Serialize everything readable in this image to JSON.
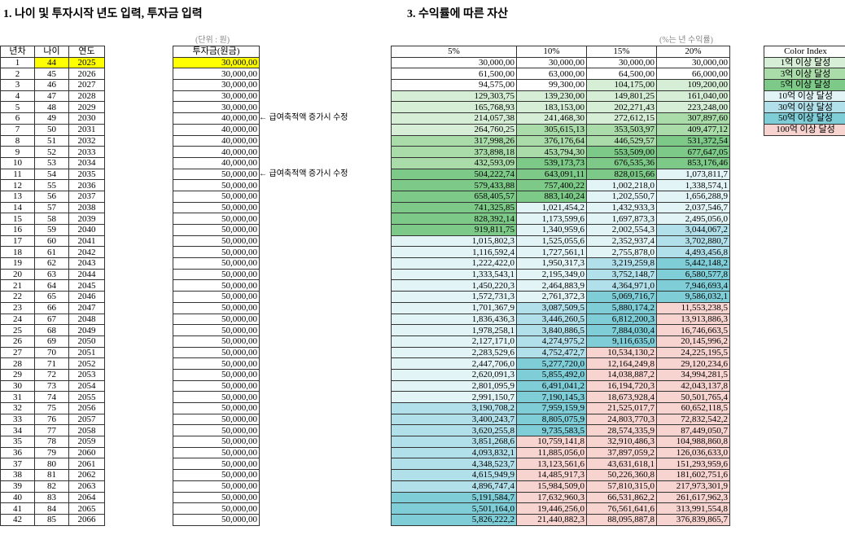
{
  "titles": {
    "section1": "1. 나이 및 투자시작 년도 입력, 투자금 입력",
    "section3": "3. 수익률에 따른 자산"
  },
  "highlight": "#ffff00",
  "left_table": {
    "headers": [
      "년차",
      "나이",
      "연도"
    ],
    "rows": [
      [
        1,
        44,
        2025
      ],
      [
        2,
        45,
        2026
      ],
      [
        3,
        46,
        2027
      ],
      [
        4,
        47,
        2028
      ],
      [
        5,
        48,
        2029
      ],
      [
        6,
        49,
        2030
      ],
      [
        7,
        50,
        2031
      ],
      [
        8,
        51,
        2032
      ],
      [
        9,
        52,
        2033
      ],
      [
        10,
        53,
        2034
      ],
      [
        11,
        54,
        2035
      ],
      [
        12,
        55,
        2036
      ],
      [
        13,
        56,
        2037
      ],
      [
        14,
        57,
        2038
      ],
      [
        15,
        58,
        2039
      ],
      [
        16,
        59,
        2040
      ],
      [
        17,
        60,
        2041
      ],
      [
        18,
        61,
        2042
      ],
      [
        19,
        62,
        2043
      ],
      [
        20,
        63,
        2044
      ],
      [
        21,
        64,
        2045
      ],
      [
        22,
        65,
        2046
      ],
      [
        23,
        66,
        2047
      ],
      [
        24,
        67,
        2048
      ],
      [
        25,
        68,
        2049
      ],
      [
        26,
        69,
        2050
      ],
      [
        27,
        70,
        2051
      ],
      [
        28,
        71,
        2052
      ],
      [
        29,
        72,
        2053
      ],
      [
        30,
        73,
        2054
      ],
      [
        31,
        74,
        2055
      ],
      [
        32,
        75,
        2056
      ],
      [
        33,
        76,
        2057
      ],
      [
        34,
        77,
        2058
      ],
      [
        35,
        78,
        2059
      ],
      [
        36,
        79,
        2060
      ],
      [
        37,
        80,
        2061
      ],
      [
        38,
        81,
        2062
      ],
      [
        39,
        82,
        2063
      ],
      [
        40,
        83,
        2064
      ],
      [
        41,
        84,
        2065
      ],
      [
        42,
        85,
        2066
      ]
    ]
  },
  "invest": {
    "unit": "(단위 : 원)",
    "header": "투자금(원금)",
    "values": [
      "30,000,00",
      "30,000,00",
      "30,000,00",
      "30,000,00",
      "30,000,00",
      "40,000,00",
      "40,000,00",
      "40,000,00",
      "40,000,00",
      "40,000,00",
      "50,000,00",
      "50,000,00",
      "50,000,00",
      "50,000,00",
      "50,000,00",
      "50,000,00",
      "50,000,00",
      "50,000,00",
      "50,000,00",
      "50,000,00",
      "50,000,00",
      "50,000,00",
      "50,000,00",
      "50,000,00",
      "50,000,00",
      "50,000,00",
      "50,000,00",
      "50,000,00",
      "50,000,00",
      "50,000,00",
      "50,000,00",
      "50,000,00",
      "50,000,00",
      "50,000,00",
      "50,000,00",
      "50,000,00",
      "50,000,00",
      "50,000,00",
      "50,000,00",
      "50,000,00",
      "50,000,00",
      "50,000,00"
    ],
    "notes": [
      null,
      null,
      null,
      null,
      null,
      "← 급여축적액 증가시 수정",
      null,
      null,
      null,
      null,
      "← 급여축적액 증가시 수정",
      null,
      null,
      null,
      null,
      null,
      null,
      null,
      null,
      null,
      null,
      null,
      null,
      null,
      null,
      null,
      null,
      null,
      null,
      null,
      null,
      null,
      null,
      null,
      null,
      null,
      null,
      null,
      null,
      null,
      null,
      null
    ]
  },
  "returns": {
    "note": "(%는 년 수익률)",
    "headers": [
      "5%",
      "10%",
      "15%",
      "20%"
    ],
    "rows": [
      [
        "30,000,00",
        "30,000,00",
        "30,000,00",
        "30,000,00"
      ],
      [
        "61,500,00",
        "63,000,00",
        "64,500,00",
        "66,000,00"
      ],
      [
        "94,575,00",
        "99,300,00",
        "104,175,00",
        "109,200,00"
      ],
      [
        "129,303,75",
        "139,230,00",
        "149,801,25",
        "161,040,00"
      ],
      [
        "165,768,93",
        "183,153,00",
        "202,271,43",
        "223,248,00"
      ],
      [
        "214,057,38",
        "241,468,30",
        "272,612,15",
        "307,897,60"
      ],
      [
        "264,760,25",
        "305,615,13",
        "353,503,97",
        "409,477,12"
      ],
      [
        "317,998,26",
        "376,176,64",
        "446,529,57",
        "531,372,54"
      ],
      [
        "373,898,18",
        "453,794,30",
        "553,509,00",
        "677,647,05"
      ],
      [
        "432,593,09",
        "539,173,73",
        "676,535,36",
        "853,176,46"
      ],
      [
        "504,222,74",
        "643,091,11",
        "828,015,66",
        "1,073,811,7"
      ],
      [
        "579,433,88",
        "757,400,22",
        "1,002,218,0",
        "1,338,574,1"
      ],
      [
        "658,405,57",
        "883,140,24",
        "1,202,550,7",
        "1,656,288,9"
      ],
      [
        "741,325,85",
        "1,021,454,2",
        "1,432,933,3",
        "2,037,546,7"
      ],
      [
        "828,392,14",
        "1,173,599,6",
        "1,697,873,3",
        "2,495,056,0"
      ],
      [
        "919,811,75",
        "1,340,959,6",
        "2,002,554,3",
        "3,044,067,2"
      ],
      [
        "1,015,802,3",
        "1,525,055,6",
        "2,352,937,4",
        "3,702,880,7"
      ],
      [
        "1,116,592,4",
        "1,727,561,1",
        "2,755,878,0",
        "4,493,456,8"
      ],
      [
        "1,222,422,0",
        "1,950,317,3",
        "3,219,259,8",
        "5,442,148,2"
      ],
      [
        "1,333,543,1",
        "2,195,349,0",
        "3,752,148,7",
        "6,580,577,8"
      ],
      [
        "1,450,220,3",
        "2,464,883,9",
        "4,364,971,0",
        "7,946,693,4"
      ],
      [
        "1,572,731,3",
        "2,761,372,3",
        "5,069,716,7",
        "9,586,032,1"
      ],
      [
        "1,701,367,9",
        "3,087,509,5",
        "5,880,174,2",
        "11,553,238,5"
      ],
      [
        "1,836,436,3",
        "3,446,260,5",
        "6,812,200,3",
        "13,913,886,3"
      ],
      [
        "1,978,258,1",
        "3,840,886,5",
        "7,884,030,4",
        "16,746,663,5"
      ],
      [
        "2,127,171,0",
        "4,274,975,2",
        "9,116,635,0",
        "20,145,996,2"
      ],
      [
        "2,283,529,6",
        "4,752,472,7",
        "10,534,130,2",
        "24,225,195,5"
      ],
      [
        "2,447,706,0",
        "5,277,720,0",
        "12,164,249,8",
        "29,120,234,6"
      ],
      [
        "2,620,091,3",
        "5,855,492,0",
        "14,038,887,2",
        "34,994,281,5"
      ],
      [
        "2,801,095,9",
        "6,491,041,2",
        "16,194,720,3",
        "42,043,137,8"
      ],
      [
        "2,991,150,7",
        "7,190,145,3",
        "18,673,928,4",
        "50,501,765,4"
      ],
      [
        "3,190,708,2",
        "7,959,159,9",
        "21,525,017,7",
        "60,652,118,5"
      ],
      [
        "3,400,243,7",
        "8,805,075,9",
        "24,803,770,3",
        "72,832,542,2"
      ],
      [
        "3,620,255,8",
        "9,735,583,5",
        "28,574,335,9",
        "87,449,050,7"
      ],
      [
        "3,851,268,6",
        "10,759,141,8",
        "32,910,486,3",
        "104,988,860,8"
      ],
      [
        "4,093,832,1",
        "11,885,056,0",
        "37,897,059,2",
        "126,036,633,0"
      ],
      [
        "4,348,523,7",
        "13,123,561,6",
        "43,631,618,1",
        "151,293,959,6"
      ],
      [
        "4,615,949,9",
        "14,485,917,3",
        "50,226,360,8",
        "181,602,751,6"
      ],
      [
        "4,896,747,4",
        "15,984,509,0",
        "57,810,315,0",
        "217,973,301,9"
      ],
      [
        "5,191,584,7",
        "17,632,960,3",
        "66,531,862,2",
        "261,617,962,3"
      ],
      [
        "5,501,164,0",
        "19,446,256,0",
        "76,561,641,6",
        "313,991,554,8"
      ],
      [
        "5,826,222,2",
        "21,440,882,3",
        "88,095,887,8",
        "376,839,865,7"
      ]
    ]
  },
  "color_index": {
    "header": "Color Index",
    "items": [
      {
        "label": "1억 이상 달성",
        "color": "#d6eed6"
      },
      {
        "label": "3억 이상 달성",
        "color": "#a9dca9"
      },
      {
        "label": "5억 이상 달성",
        "color": "#7dca88"
      },
      {
        "label": "10억 이상 달성",
        "color": "#e3f4f7"
      },
      {
        "label": "30억 이상 달성",
        "color": "#b2e0ea"
      },
      {
        "label": "50억 이상 달성",
        "color": "#7ecdd7"
      },
      {
        "label": "100억 이상 달성",
        "color": "#f8d4d1"
      }
    ]
  }
}
